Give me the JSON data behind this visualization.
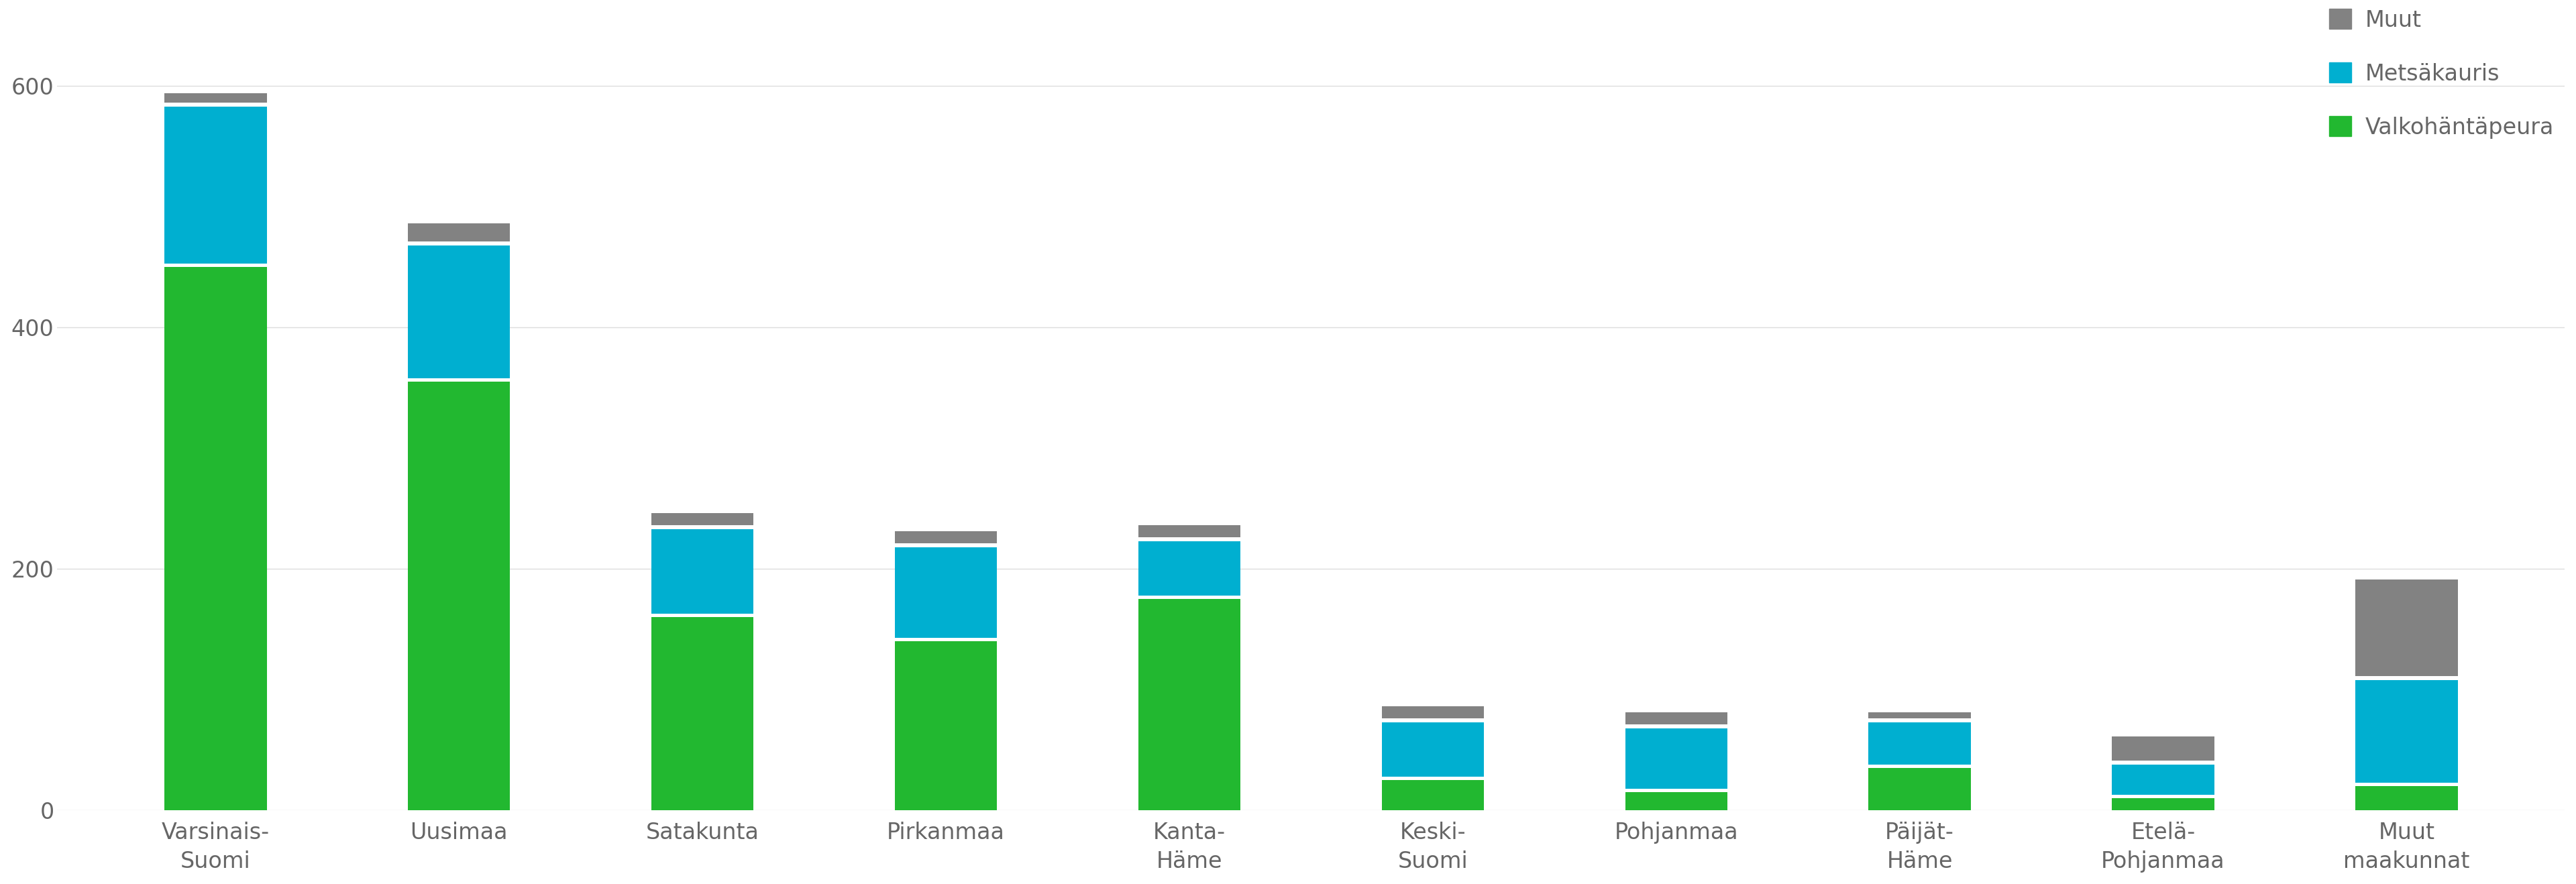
{
  "categories": [
    "Varsinais-\nSuomi",
    "Uusimaa",
    "Satakunta",
    "Pirkanmaa",
    "Kanta-\nHäme",
    "Keski-\nSuomi",
    "Pohjanmaa",
    "Päijät-\nHäme",
    "Etelä-\nPohjanmaa",
    "Muut\nmaakunnat"
  ],
  "valkohantapeura": [
    450,
    355,
    160,
    140,
    175,
    25,
    15,
    35,
    10,
    20
  ],
  "metsakauris": [
    130,
    110,
    70,
    75,
    45,
    45,
    50,
    35,
    25,
    85
  ],
  "muut": [
    8,
    15,
    10,
    10,
    10,
    10,
    10,
    5,
    20,
    80
  ],
  "color_valkohantapeura": "#22b830",
  "color_metsakauris": "#00afd0",
  "color_muut": "#828282",
  "ylim": [
    0,
    660
  ],
  "yticks": [
    0,
    200,
    400,
    600
  ],
  "background_color": "#ffffff",
  "bar_width": 0.42,
  "fontsize_tick": 24,
  "fontsize_legend": 24
}
